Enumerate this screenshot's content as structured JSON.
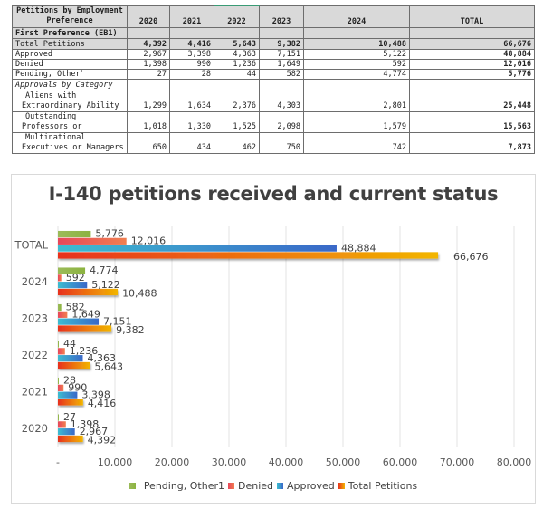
{
  "table": {
    "header_label": "Petitions by Employment Preference",
    "years": [
      "2020",
      "2021",
      "2022",
      "2023",
      "2024"
    ],
    "total_label": "TOTAL",
    "section_label": "First Preference (EB1)",
    "rows": [
      {
        "label": "Total Petitions",
        "values": [
          "4,392",
          "4,416",
          "5,643",
          "9,382",
          "10,488"
        ],
        "total": "66,676"
      },
      {
        "label": "Approved",
        "values": [
          "2,967",
          "3,398",
          "4,363",
          "7,151",
          "5,122"
        ],
        "total": "48,884"
      },
      {
        "label": "Denied",
        "values": [
          "1,398",
          "990",
          "1,236",
          "1,649",
          "592"
        ],
        "total": "12,016"
      },
      {
        "label": "Pending, Other",
        "sup": "1",
        "values": [
          "27",
          "28",
          "44",
          "582",
          "4,774"
        ],
        "total": "5,776"
      }
    ],
    "category_label": "Approvals by Category",
    "category_rows": [
      {
        "label_line1": "Aliens with",
        "label_line2": "Extraordinary Ability",
        "values": [
          "1,299",
          "1,634",
          "2,376",
          "4,303",
          "2,801"
        ],
        "total": "25,448"
      },
      {
        "label_line1": "Outstanding",
        "label_line2": "Professors or",
        "values": [
          "1,018",
          "1,330",
          "1,525",
          "2,098",
          "1,579"
        ],
        "total": "15,563"
      },
      {
        "label_line1": "Multinational",
        "label_line2": "Executives or Managers",
        "values": [
          "650",
          "434",
          "462",
          "750",
          "742"
        ],
        "total": "7,873"
      }
    ]
  },
  "chart_data": {
    "type": "bar",
    "orientation": "horizontal",
    "title": "I-140 petitions received and current status",
    "categories": [
      "TOTAL",
      "2024",
      "2023",
      "2022",
      "2021",
      "2020"
    ],
    "series": [
      {
        "name": "Pending, Other1",
        "values": [
          5776,
          4774,
          582,
          44,
          28,
          27
        ],
        "labels": [
          "5,776",
          "4,774",
          "582",
          "44",
          "28",
          "27"
        ],
        "color": "#9bbb59",
        "color2": "#8cb340"
      },
      {
        "name": "Denied",
        "values": [
          12016,
          592,
          1649,
          1236,
          990,
          1398
        ],
        "labels": [
          "12,016",
          "592",
          "1,649",
          "1,236",
          "990",
          "1,398"
        ],
        "color": "#e8475a",
        "color2": "#f07f50"
      },
      {
        "name": "Approved",
        "values": [
          48884,
          5122,
          7151,
          4363,
          3398,
          2967
        ],
        "labels": [
          "48,884",
          "5,122",
          "7,151",
          "4,363",
          "3,398",
          "2,967"
        ],
        "color": "#3dbcd0",
        "color2": "#3a68c8"
      },
      {
        "name": "Total Petitions",
        "values": [
          66676,
          10488,
          9382,
          5643,
          4416,
          4392
        ],
        "labels": [
          "66,676",
          "10,488",
          "9,382",
          "5,643",
          "4,416",
          "4,392"
        ],
        "color": "#e8301e",
        "color2": "#f2b600"
      }
    ],
    "xlim": [
      0,
      80000
    ],
    "xticks": [
      0,
      10000,
      20000,
      30000,
      40000,
      50000,
      60000,
      70000,
      80000
    ],
    "xtick_labels": [
      "-",
      "10,000",
      "20,000",
      "30,000",
      "40,000",
      "50,000",
      "60,000",
      "70,000",
      "80,000"
    ],
    "xlabel": "",
    "ylabel": "",
    "grid": true,
    "legend_position": "bottom"
  }
}
